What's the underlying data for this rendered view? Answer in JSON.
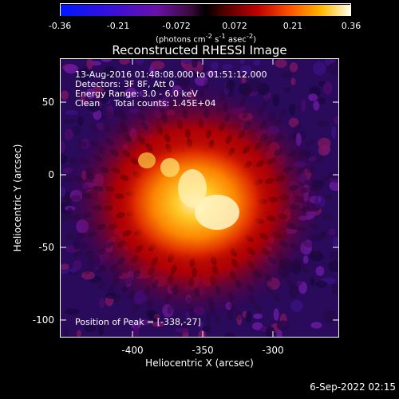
{
  "colorbar": {
    "ticks": [
      "-0.36",
      "-0.21",
      "-0.072",
      "0.072",
      "0.21",
      "0.36"
    ],
    "units_html": "(photons cm<sup>-2</sup> s<sup>-1</sup> asec<sup>-2</sup>)"
  },
  "title": "Reconstructed RHESSI Image",
  "annotations": {
    "time": "13-Aug-2016 01:48:08.000 to 01:51:12.000",
    "detectors": "Detectors: 3F 8F, Att 0",
    "energy": "Energy Range: 3.0 - 6.0 keV",
    "clean": "Clean     Total counts: 1.45E+04",
    "peak": "Position of Peak = [-338,-27]"
  },
  "axes": {
    "xlabel": "Heliocentric X (arcsec)",
    "ylabel": "Heliocentric Y (arcsec)",
    "xticks": [
      "-400",
      "-350",
      "-300"
    ],
    "yticks": [
      "50",
      "0",
      "-50",
      "-100"
    ]
  },
  "timestamp": "6-Sep-2022 02:15",
  "colors": {
    "background": "#000000",
    "axis": "#ffffff"
  }
}
